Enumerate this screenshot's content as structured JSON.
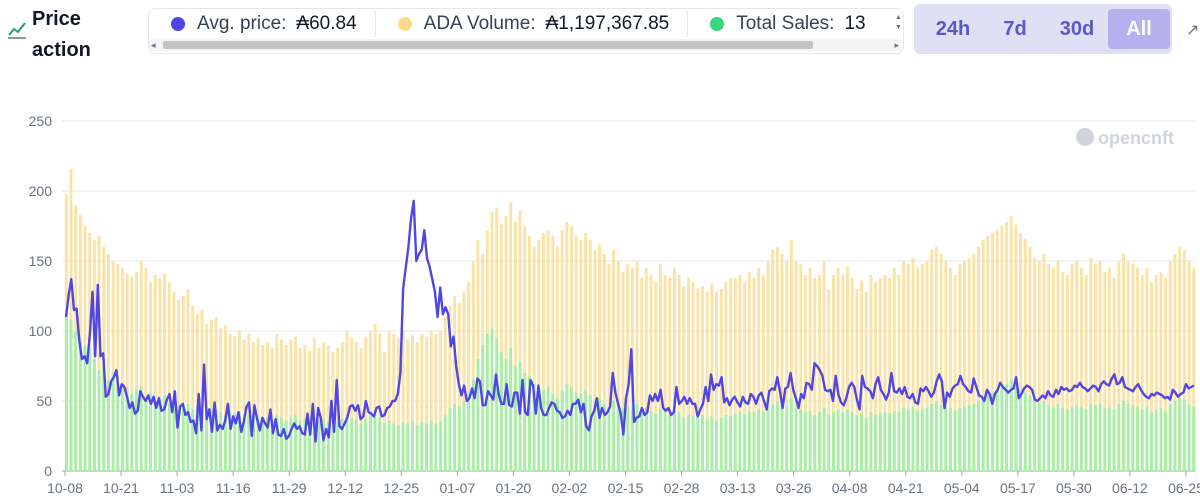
{
  "header": {
    "title": "Price action",
    "legend": [
      {
        "label": "Avg. price:",
        "value": "₳60.84",
        "color": "#4f46e5"
      },
      {
        "label": "ADA Volume:",
        "value": "₳1,197,367.85",
        "color": "#fcd98a"
      },
      {
        "label": "Total Sales:",
        "value": "13",
        "color": "#34d97b"
      }
    ],
    "ranges": [
      {
        "label": "24h",
        "active": false
      },
      {
        "label": "7d",
        "active": false
      },
      {
        "label": "30d",
        "active": false
      },
      {
        "label": "All",
        "active": true
      }
    ]
  },
  "watermark": "opencnft",
  "icons": {
    "title": "line-chart-icon",
    "watermark": "opencnft-logo-icon"
  },
  "chart_data": {
    "type": "bar",
    "x_tick_labels": [
      "10-08",
      "10-21",
      "11-03",
      "11-16",
      "11-29",
      "12-12",
      "12-25",
      "01-07",
      "01-20",
      "02-02",
      "02-15",
      "02-28",
      "03-13",
      "03-26",
      "04-08",
      "04-21",
      "05-04",
      "05-17",
      "05-30",
      "06-12",
      "06-25"
    ],
    "y_ticks": [
      0,
      50,
      100,
      150,
      200,
      250
    ],
    "ylim": [
      0,
      250
    ],
    "grid": true,
    "series": [
      {
        "name": "ADA Volume",
        "type": "bar",
        "color": "#fbe3a6",
        "values": [
          198,
          216,
          190,
          183,
          175,
          170,
          165,
          168,
          160,
          155,
          150,
          148,
          145,
          141,
          139,
          142,
          150,
          145,
          135,
          140,
          138,
          141,
          135,
          128,
          122,
          125,
          130,
          118,
          112,
          115,
          105,
          108,
          110,
          102,
          104,
          98,
          96,
          100,
          94,
          98,
          92,
          95,
          90,
          92,
          88,
          98,
          94,
          90,
          94,
          96,
          88,
          90,
          86,
          95,
          88,
          92,
          90,
          85,
          88,
          92,
          100,
          95,
          92,
          88,
          96,
          100,
          105,
          98,
          85,
          100,
          98,
          95,
          100,
          94,
          97,
          92,
          98,
          96,
          100,
          98,
          100,
          110,
          118,
          125,
          120,
          128,
          135,
          150,
          165,
          155,
          172,
          185,
          188,
          176,
          182,
          192,
          178,
          186,
          175,
          168,
          160,
          165,
          170,
          172,
          168,
          160,
          172,
          178,
          175,
          168,
          165,
          170,
          165,
          158,
          162,
          155,
          148,
          158,
          150,
          142,
          148,
          145,
          150,
          138,
          145,
          140,
          135,
          148,
          140,
          138,
          145,
          140,
          132,
          138,
          135,
          130,
          132,
          128,
          134,
          128,
          130,
          135,
          138,
          138,
          140,
          135,
          142,
          138,
          145,
          140,
          150,
          158,
          160,
          155,
          150,
          165,
          150,
          148,
          140,
          145,
          138,
          140,
          150,
          130,
          140,
          145,
          140,
          146,
          138,
          130,
          136,
          128,
          140,
          135,
          138,
          140,
          138,
          145,
          140,
          150,
          148,
          152,
          145,
          148,
          150,
          158,
          160,
          155,
          150,
          145,
          140,
          148,
          150,
          152,
          155,
          160,
          165,
          168,
          170,
          172,
          175,
          178,
          182,
          176,
          170,
          166,
          160,
          152,
          150,
          155,
          148,
          145,
          150,
          142,
          140,
          148,
          150,
          145,
          140,
          152,
          148,
          150,
          142,
          145,
          138,
          150,
          155,
          150,
          148,
          145,
          140,
          145,
          135,
          140,
          142,
          138,
          150,
          155,
          160,
          158,
          150,
          145
        ]
      },
      {
        "name": "Total Sales",
        "type": "bar",
        "color": "#a7efa9",
        "values": [
          110,
          108,
          100,
          95,
          90,
          88,
          80,
          72,
          75,
          65,
          70,
          62,
          58,
          60,
          55,
          58,
          60,
          52,
          55,
          50,
          52,
          54,
          48,
          50,
          46,
          45,
          48,
          44,
          46,
          44,
          42,
          45,
          44,
          42,
          40,
          43,
          41,
          42,
          38,
          40,
          38,
          40,
          36,
          38,
          35,
          40,
          38,
          36,
          38,
          40,
          36,
          37,
          35,
          38,
          36,
          37,
          35,
          33,
          35,
          37,
          40,
          38,
          36,
          34,
          37,
          40,
          42,
          38,
          34,
          36,
          34,
          33,
          35,
          34,
          36,
          33,
          35,
          34,
          36,
          34,
          35,
          40,
          45,
          48,
          46,
          50,
          55,
          65,
          80,
          90,
          98,
          102,
          95,
          85,
          80,
          88,
          75,
          78,
          70,
          68,
          62,
          60,
          58,
          60,
          55,
          52,
          58,
          62,
          60,
          56,
          55,
          58,
          54,
          50,
          52,
          48,
          46,
          50,
          47,
          45,
          46,
          44,
          48,
          42,
          45,
          43,
          41,
          44,
          42,
          40,
          43,
          42,
          38,
          40,
          39,
          38,
          40,
          37,
          39,
          36,
          38,
          40,
          39,
          41,
          42,
          40,
          43,
          42,
          44,
          42,
          45,
          48,
          50,
          47,
          46,
          52,
          45,
          44,
          42,
          43,
          40,
          42,
          45,
          40,
          42,
          44,
          42,
          44,
          42,
          40,
          41,
          38,
          42,
          40,
          41,
          42,
          41,
          43,
          42,
          45,
          44,
          46,
          43,
          44,
          45,
          48,
          50,
          47,
          46,
          45,
          43,
          45,
          46,
          47,
          48,
          50,
          52,
          54,
          56,
          58,
          60,
          62,
          65,
          60,
          58,
          56,
          54,
          50,
          48,
          50,
          47,
          46,
          48,
          45,
          44,
          46,
          47,
          46,
          44,
          48,
          47,
          48,
          45,
          46,
          44,
          48,
          50,
          48,
          47,
          46,
          44,
          46,
          42,
          44,
          45,
          43,
          48,
          50,
          52,
          51,
          48,
          46
        ]
      },
      {
        "name": "Avg. price",
        "type": "line",
        "color": "#5046e5",
        "values": [
          110,
          126,
          137,
          115,
          116,
          93,
          80,
          82,
          77,
          98,
          128,
          82,
          133,
          82,
          84,
          53,
          55,
          64,
          67,
          72,
          54,
          62,
          60,
          53,
          45,
          49,
          41,
          43,
          57,
          53,
          50,
          54,
          48,
          53,
          45,
          52,
          43,
          44,
          51,
          55,
          42,
          57,
          31,
          46,
          48,
          40,
          42,
          35,
          36,
          27,
          55,
          29,
          76,
          37,
          44,
          28,
          49,
          29,
          33,
          30,
          36,
          48,
          30,
          39,
          34,
          42,
          28,
          35,
          46,
          49,
          25,
          47,
          37,
          29,
          38,
          34,
          31,
          44,
          27,
          37,
          26,
          25,
          30,
          23,
          25,
          30,
          34,
          30,
          32,
          27,
          26,
          41,
          26,
          48,
          21,
          45,
          38,
          22,
          30,
          24,
          50,
          28,
          65,
          32,
          30,
          34,
          38,
          46,
          47,
          43,
          47,
          37,
          39,
          50,
          42,
          41,
          39,
          45,
          46,
          39,
          40,
          45,
          46,
          50,
          50,
          55,
          70,
          130,
          145,
          160,
          180,
          193,
          150,
          155,
          158,
          172,
          152,
          146,
          137,
          128,
          110,
          131,
          112,
          117,
          112,
          89,
          96,
          75,
          62,
          54,
          61,
          50,
          52,
          59,
          52,
          66,
          64,
          47,
          47,
          57,
          54,
          51,
          69,
          55,
          48,
          48,
          62,
          47,
          46,
          56,
          56,
          41,
          65,
          42,
          40,
          65,
          61,
          41,
          61,
          45,
          40,
          40,
          45,
          49,
          48,
          43,
          42,
          38,
          39,
          43,
          40,
          48,
          48,
          51,
          42,
          48,
          32,
          29,
          39,
          43,
          52,
          38,
          45,
          40,
          42,
          46,
          70,
          56,
          48,
          41,
          26,
          52,
          62,
          87,
          35,
          38,
          39,
          45,
          40,
          42,
          54,
          50,
          55,
          50,
          58,
          45,
          43,
          45,
          40,
          42,
          60,
          48,
          50,
          53,
          48,
          52,
          48,
          48,
          39,
          44,
          48,
          60,
          50,
          69,
          58,
          62,
          61,
          67,
          49,
          52,
          47,
          51,
          53,
          49,
          46,
          53,
          49,
          48,
          55,
          53,
          48,
          54,
          56,
          50,
          44,
          57,
          59,
          58,
          67,
          57,
          45,
          59,
          60,
          70,
          58,
          52,
          45,
          55,
          52,
          63,
          62,
          58,
          77,
          75,
          72,
          68,
          58,
          57,
          58,
          50,
          68,
          55,
          49,
          47,
          52,
          60,
          63,
          60,
          51,
          44,
          68,
          60,
          59,
          57,
          52,
          62,
          67,
          58,
          55,
          51,
          56,
          70,
          57,
          56,
          59,
          55,
          60,
          53,
          52,
          55,
          49,
          48,
          59,
          57,
          60,
          57,
          53,
          56,
          64,
          69,
          64,
          45,
          56,
          53,
          59,
          61,
          62,
          68,
          62,
          60,
          57,
          56,
          66,
          60,
          54,
          53,
          50,
          58,
          55,
          48,
          55,
          58,
          63,
          60,
          58,
          56,
          58,
          59,
          67,
          52,
          55,
          59,
          61,
          60,
          58,
          51,
          50,
          52,
          54,
          52,
          57,
          54,
          53,
          58,
          55,
          60,
          58,
          59,
          57,
          58,
          61,
          60,
          63,
          60,
          59,
          57,
          59,
          61,
          60,
          57,
          62,
          64,
          62,
          61,
          66,
          69,
          62,
          63,
          67,
          60,
          59,
          58,
          57,
          60,
          62,
          58,
          55,
          53,
          52,
          55,
          54,
          56,
          55,
          54,
          52,
          53,
          51,
          58,
          56,
          53,
          55,
          56,
          62,
          59,
          60,
          61
        ]
      }
    ]
  }
}
